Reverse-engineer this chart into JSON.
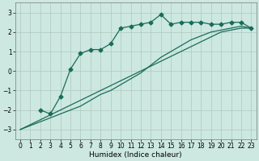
{
  "xlabel": "Humidex (Indice chaleur)",
  "ylabel": "",
  "bg_color": "#cce8e0",
  "grid_color": "#b0c8c0",
  "line_color": "#1a6b5a",
  "xlim": [
    -0.5,
    23.5
  ],
  "ylim": [
    -3.5,
    3.5
  ],
  "xticks": [
    0,
    1,
    2,
    3,
    4,
    5,
    6,
    7,
    8,
    9,
    10,
    11,
    12,
    13,
    14,
    15,
    16,
    17,
    18,
    19,
    20,
    21,
    22,
    23
  ],
  "yticks": [
    -3,
    -2,
    -1,
    0,
    1,
    2,
    3
  ],
  "curve1_x": [
    0,
    1,
    2,
    3,
    4,
    5,
    6,
    7,
    8,
    9,
    10,
    11,
    12,
    13,
    14,
    15,
    16,
    17,
    18,
    19,
    20,
    21,
    22,
    23
  ],
  "curve1_y": [
    -3.0,
    -2.75,
    -2.5,
    -2.25,
    -2.0,
    -1.75,
    -1.5,
    -1.25,
    -1.0,
    -0.75,
    -0.5,
    -0.25,
    0.0,
    0.25,
    0.5,
    0.75,
    1.0,
    1.25,
    1.5,
    1.75,
    2.0,
    2.1,
    2.2,
    2.2
  ],
  "curve2_x": [
    0,
    1,
    2,
    3,
    4,
    5,
    6,
    7,
    8,
    9,
    10,
    11,
    12,
    13,
    14,
    15,
    16,
    17,
    18,
    19,
    20,
    21,
    22,
    23
  ],
  "curve2_y": [
    -3.0,
    -2.8,
    -2.6,
    -2.4,
    -2.2,
    -2.0,
    -1.8,
    -1.5,
    -1.2,
    -1.0,
    -0.7,
    -0.4,
    -0.1,
    0.3,
    0.7,
    1.0,
    1.3,
    1.6,
    1.8,
    2.0,
    2.1,
    2.2,
    2.3,
    2.2
  ],
  "curve3_x": [
    2,
    3,
    4,
    5,
    6,
    7,
    8,
    9,
    10,
    11,
    12,
    13,
    14,
    15,
    16,
    17,
    18,
    19,
    20,
    21,
    22,
    23
  ],
  "curve3_y": [
    -2.0,
    -2.2,
    -1.3,
    0.1,
    0.9,
    1.1,
    1.1,
    1.4,
    2.2,
    2.3,
    2.4,
    2.5,
    2.9,
    2.4,
    2.5,
    2.5,
    2.5,
    2.4,
    2.4,
    2.5,
    2.5,
    2.2
  ],
  "marker": "D",
  "markersize": 2.5,
  "xlabel_fontsize": 6.5,
  "tick_fontsize": 5.5
}
